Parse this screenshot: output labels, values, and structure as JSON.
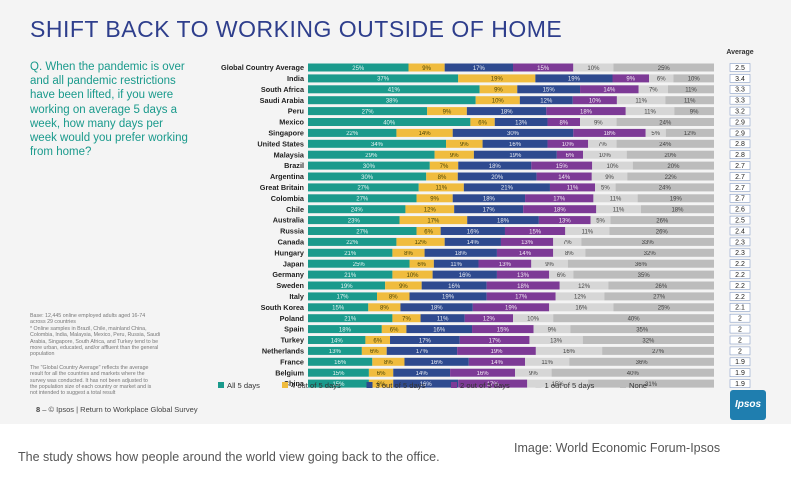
{
  "title": "SHIFT BACK TO WORKING OUTSIDE OF HOME",
  "question": "Q. When the pandemic is over and all pandemic restrictions have been lifted, if you were working on average 5 days a week, how many days per week would you prefer working from home?",
  "notes": [
    "Base: 12,445 online employed adults aged 16-74",
    "across 29 countries",
    "* Online samples in Brazil, Chile, mainland China,",
    "Colombia, India, Malaysia, Mexico, Peru, Russia, Saudi",
    "Arabia, Singapore, South Africa, and Turkey tend to be",
    "more urban, educated, and/or affluent than the general",
    "population",
    "",
    "The \"Global Country Average\" reflects the average",
    "result for all the countries and markets where the",
    "survey was conducted. It has not been adjusted to",
    "the population size of each country or market and is",
    "not intended to suggest a total result"
  ],
  "footer": {
    "page": "8",
    "text": "– © Ipsos | Return to Workplace Global Survey"
  },
  "logo": "Ipsos",
  "caption": "The study shows how people around the world view going back to the office.",
  "credit": "Image: World Economic Forum-Ipsos",
  "colors": {
    "background": "#f4f4f4",
    "title": "#2e3e8c",
    "question": "#1a9a8c",
    "series": [
      "#1a9a8c",
      "#f0bc3e",
      "#2e4a8f",
      "#7d3a96",
      "#d6d6d6",
      "#bcbcbc"
    ]
  },
  "chart_data": {
    "type": "bar",
    "orientation": "horizontal",
    "stacked": true,
    "average_header": "Average",
    "categories": [
      "Global Country Average",
      "India",
      "South Africa",
      "Saudi Arabia",
      "Peru",
      "Mexico",
      "Singapore",
      "United States",
      "Malaysia",
      "Brazil",
      "Argentina",
      "Great Britain",
      "Colombia",
      "Chile",
      "Australia",
      "Russia",
      "Canada",
      "Hungary",
      "Japan",
      "Germany",
      "Sweden",
      "Italy",
      "South Korea",
      "Poland",
      "Spain",
      "Turkey",
      "Netherlands",
      "France",
      "Belgium",
      "China"
    ],
    "series": [
      {
        "name": "All 5 days",
        "values": [
          25,
          37,
          41,
          38,
          27,
          40,
          22,
          34,
          29,
          30,
          30,
          27,
          27,
          24,
          23,
          27,
          22,
          21,
          25,
          21,
          19,
          17,
          15,
          21,
          18,
          14,
          13,
          16,
          15,
          15
        ]
      },
      {
        "name": "4 out of 5 days",
        "values": [
          9,
          19,
          9,
          10,
          9,
          6,
          14,
          9,
          9,
          7,
          8,
          11,
          9,
          12,
          17,
          6,
          12,
          8,
          6,
          10,
          9,
          8,
          8,
          7,
          6,
          6,
          6,
          8,
          6,
          6
        ]
      },
      {
        "name": "3 out of 5 days",
        "values": [
          17,
          19,
          15,
          12,
          18,
          13,
          30,
          16,
          19,
          18,
          20,
          21,
          18,
          17,
          18,
          16,
          14,
          18,
          11,
          16,
          16,
          19,
          18,
          11,
          16,
          17,
          17,
          16,
          14,
          16
        ]
      },
      {
        "name": "2 out of 5 days",
        "values": [
          15,
          9,
          14,
          10,
          18,
          8,
          18,
          10,
          6,
          15,
          14,
          11,
          17,
          18,
          13,
          15,
          13,
          14,
          13,
          13,
          18,
          17,
          19,
          12,
          15,
          17,
          19,
          14,
          16,
          17
        ]
      },
      {
        "name": "1 out of 5 days",
        "values": [
          10,
          6,
          7,
          11,
          11,
          9,
          5,
          7,
          10,
          10,
          9,
          5,
          11,
          11,
          5,
          11,
          7,
          8,
          9,
          6,
          12,
          12,
          16,
          10,
          9,
          13,
          16,
          11,
          9,
          15
        ]
      },
      {
        "name": "None",
        "values": [
          25,
          10,
          11,
          11,
          9,
          24,
          12,
          24,
          20,
          20,
          22,
          24,
          19,
          18,
          26,
          26,
          33,
          32,
          36,
          35,
          26,
          27,
          25,
          40,
          35,
          32,
          27,
          36,
          40,
          31
        ]
      }
    ],
    "average": [
      "2.5",
      "3.4",
      "3.3",
      "3.3",
      "3.2",
      "2.9",
      "2.9",
      "2.8",
      "2.8",
      "2.7",
      "2.7",
      "2.7",
      "2.7",
      "2.6",
      "2.5",
      "2.4",
      "2.3",
      "2.3",
      "2.2",
      "2.2",
      "2.2",
      "2.2",
      "2.1",
      "2",
      "2",
      "2",
      "2",
      "1.9",
      "1.9",
      "1.9"
    ],
    "xlim": [
      0,
      100
    ],
    "legend_position": "bottom"
  }
}
